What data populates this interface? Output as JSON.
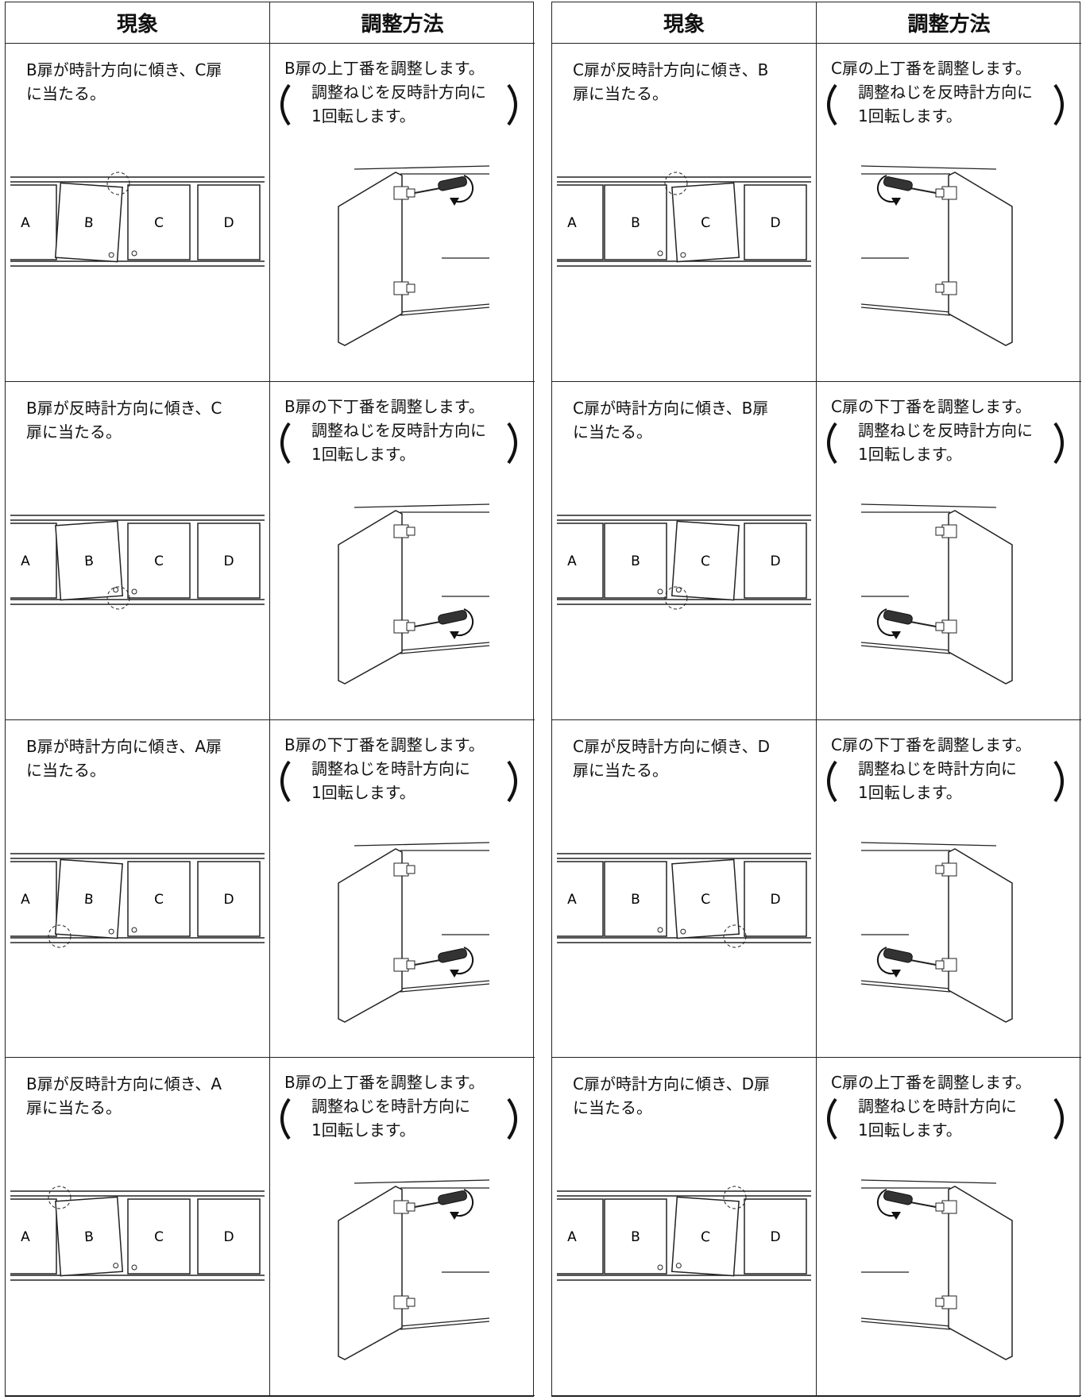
{
  "tables": [
    {
      "headers": [
        "現象",
        "調整方法"
      ],
      "rows": [
        {
          "phenomenon": [
            "B扉が時計方向に傾き、C扉",
            "に当たる。"
          ],
          "adjustment": {
            "title": "B扉の上丁番を調整します。",
            "detail": [
              "調整ねじを反時計方向に",
              "1回転します。"
            ]
          }
        },
        {
          "phenomenon": [
            "B扉が反時計方向に傾き、C",
            "扉に当たる。"
          ],
          "adjustment": {
            "title": "B扉の下丁番を調整します。",
            "detail": [
              "調整ねじを反時計方向に",
              "1回転します。"
            ]
          }
        },
        {
          "phenomenon": [
            "B扉が時計方向に傾き、A扉",
            "に当たる。"
          ],
          "adjustment": {
            "title": "B扉の下丁番を調整します。",
            "detail": [
              "調整ねじを時計方向に",
              "1回転します。"
            ]
          }
        },
        {
          "phenomenon": [
            "B扉が反時計方向に傾き、A",
            "扉に当たる。"
          ],
          "adjustment": {
            "title": "B扉の上丁番を調整します。",
            "detail": [
              "調整ねじを時計方向に",
              "1回転します。"
            ]
          }
        }
      ]
    },
    {
      "headers": [
        "現象",
        "調整方法"
      ],
      "rows": [
        {
          "phenomenon": [
            "C扉が反時計方向に傾き、B",
            "扉に当たる。"
          ],
          "adjustment": {
            "title": "C扉の上丁番を調整します。",
            "detail": [
              "調整ねじを反時計方向に",
              "1回転します。"
            ]
          }
        },
        {
          "phenomenon": [
            "C扉が時計方向に傾き、B扉",
            "に当たる。"
          ],
          "adjustment": {
            "title": "C扉の下丁番を調整します。",
            "detail": [
              "調整ねじを反時計方向に",
              "1回転します。"
            ]
          }
        },
        {
          "phenomenon": [
            "C扉が反時計方向に傾き、D",
            "扉に当たる。"
          ],
          "adjustment": {
            "title": "C扉の下丁番を調整します。",
            "detail": [
              "調整ねじを時計方向に",
              "1回転します。"
            ]
          }
        },
        {
          "phenomenon": [
            "C扉が時計方向に傾き、D扉",
            "に当たる。"
          ],
          "adjustment": {
            "title": "C扉の上丁番を調整します。",
            "detail": [
              "調整ねじを時計方向に",
              "1回転します。"
            ]
          }
        }
      ]
    }
  ],
  "door_labels": [
    "A",
    "B",
    "C",
    "D"
  ]
}
